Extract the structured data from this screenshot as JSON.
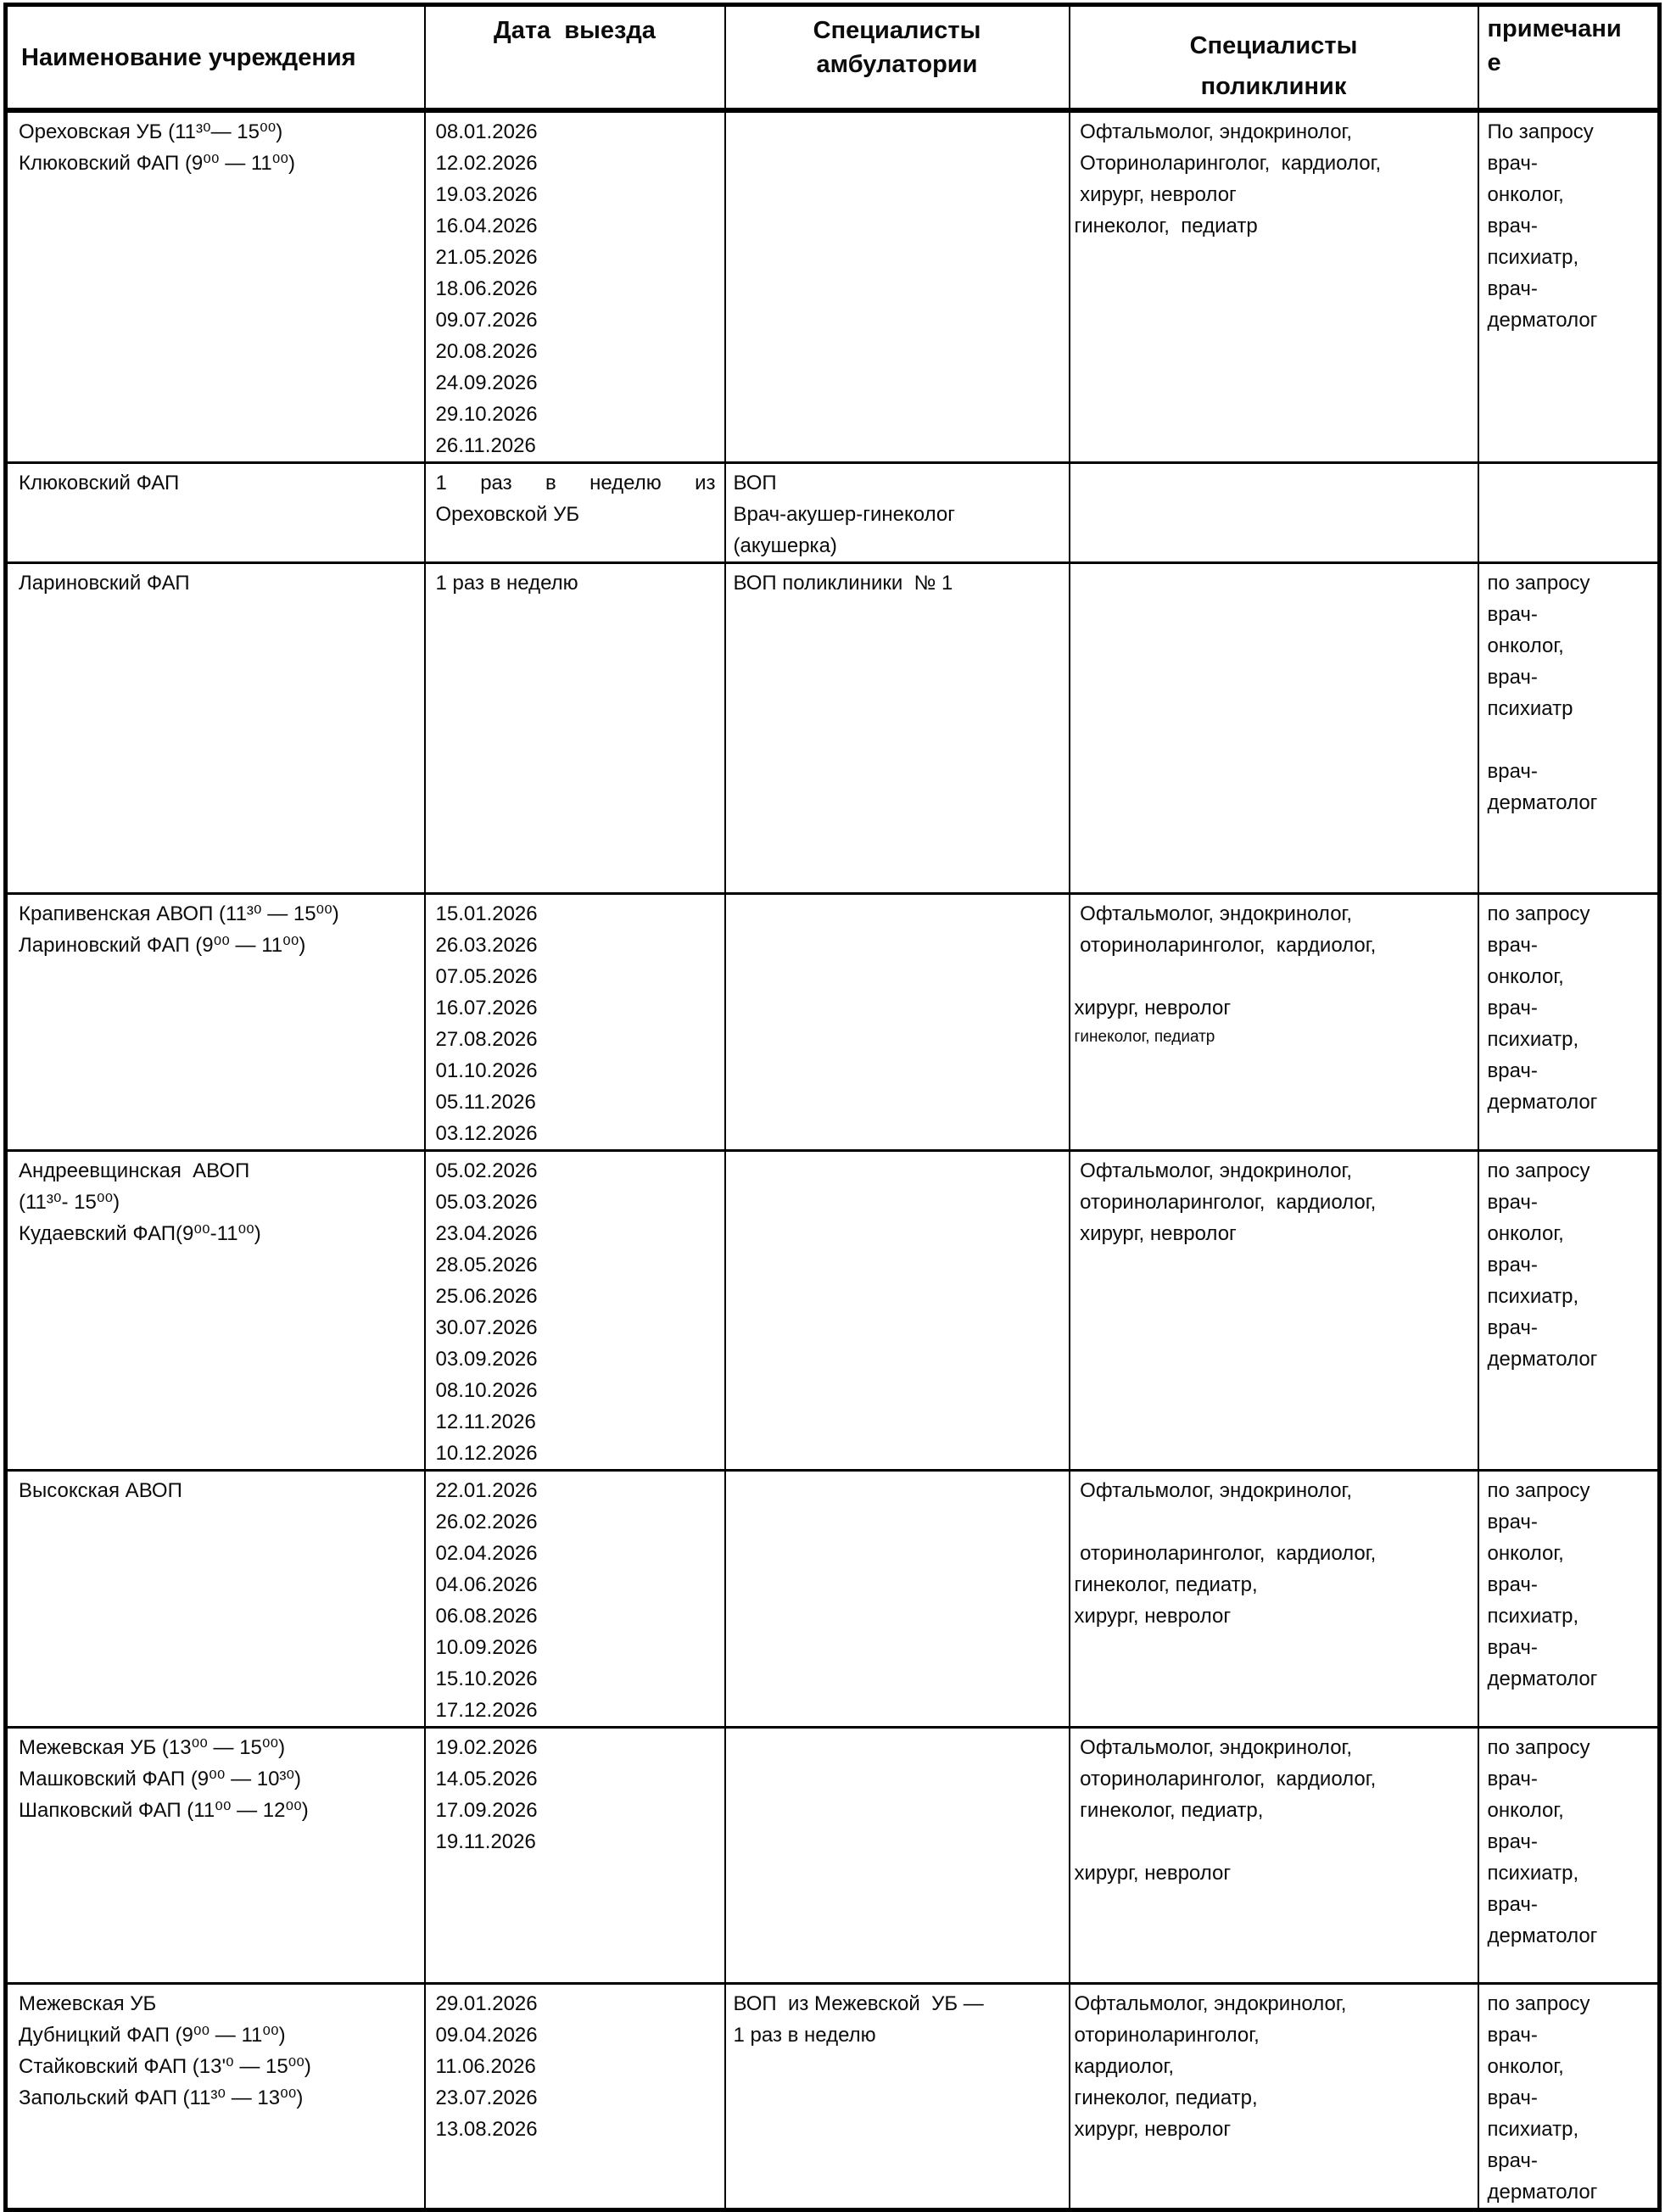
{
  "table": {
    "headers": [
      {
        "lines": [
          "Наименование учреждения"
        ]
      },
      {
        "lines": [
          "Дата  выезда"
        ]
      },
      {
        "lines": [
          "Специалисты",
          "амбулатории"
        ]
      },
      {
        "lines": [
          "Специалисты",
          "поликлиник"
        ]
      },
      {
        "lines": [
          "примечани",
          "е"
        ]
      }
    ],
    "rows": [
      {
        "cells": [
          {
            "lines": [
              "Ореховская УБ (11³⁰— 15⁰⁰)",
              "Клюковский ФАП (9⁰⁰ — 11⁰⁰)"
            ]
          },
          {
            "lines": [
              "08.01.2026",
              "12.02.2026",
              "19.03.2026",
              "16.04.2026",
              "21.05.2026",
              "18.06.2026",
              "09.07.2026",
              "20.08.2026",
              "24.09.2026",
              "29.10.2026",
              "26.11.2026"
            ]
          },
          {
            "lines": []
          },
          {
            "lines": [
              " Офтальмолог, эндокринолог,",
              " Оториноларинголог,  кардиолог,",
              " хирург, невролог",
              "гинеколог,  педиатр"
            ]
          },
          {
            "lines": [
              "По запросу",
              "врач-",
              "онколог,",
              "врач-",
              "психиатр,",
              "врач-",
              "дерматолог"
            ]
          }
        ]
      },
      {
        "cells": [
          {
            "lines": [
              "Клюковский ФАП"
            ]
          },
          {
            "justify": true,
            "lines": [
              "1 раз в неделю из Ореховской УБ"
            ]
          },
          {
            "lines": [
              "ВОП",
              "Врач-акушер-гинеколог",
              "(акушерка)"
            ]
          },
          {
            "lines": []
          },
          {
            "lines": []
          }
        ]
      },
      {
        "cells": [
          {
            "lines": [
              "Лариновский ФАП"
            ]
          },
          {
            "lines": [
              "1 раз в неделю"
            ]
          },
          {
            "lines": [
              "ВОП поликлиники  № 1"
            ]
          },
          {
            "lines": []
          },
          {
            "lines": [
              "по запросу",
              "врач-",
              "онколог,",
              "врач-",
              "психиатр",
              "",
              "врач-",
              "дерматолог"
            ]
          }
        ]
      },
      {
        "cells": [
          {
            "lines": [
              "Крапивенская АВОП (11³⁰ — 15⁰⁰)",
              "Лариновский ФАП (9⁰⁰ — 11⁰⁰)"
            ]
          },
          {
            "lines": [
              "15.01.2026",
              "26.03.2026",
              "07.05.2026",
              "16.07.2026",
              "27.08.2026",
              "01.10.2026",
              "05.11.2026",
              "03.12.2026"
            ]
          },
          {
            "lines": []
          },
          {
            "lines": [
              " Офтальмолог, эндокринолог,",
              " оториноларинголог,  кардиолог,",
              "",
              "хирург, невролог",
              {
                "text": "гинеколог, педиатр",
                "small": true
              }
            ]
          },
          {
            "lines": [
              "по запросу",
              "врач-",
              "онколог,",
              "врач-",
              "психиатр,",
              "врач-",
              "дерматолог"
            ]
          }
        ]
      },
      {
        "cells": [
          {
            "lines": [
              "Андреевщинская  АВОП",
              "(11³⁰- 15⁰⁰)",
              "Кудаевский ФАП(9⁰⁰-11⁰⁰)"
            ]
          },
          {
            "lines": [
              "05.02.2026",
              "05.03.2026",
              "23.04.2026",
              "28.05.2026",
              "25.06.2026",
              "30.07.2026",
              "03.09.2026",
              "08.10.2026",
              "12.11.2026",
              "10.12.2026"
            ]
          },
          {
            "lines": []
          },
          {
            "lines": [
              " Офтальмолог, эндокринолог,",
              " оториноларинголог,  кардиолог,",
              " хирург, невролог"
            ]
          },
          {
            "lines": [
              "по запросу",
              "врач-",
              "онколог,",
              "врач-",
              "психиатр,",
              "врач-",
              "дерматолог"
            ]
          }
        ]
      },
      {
        "cells": [
          {
            "lines": [
              "Высокская АВОП"
            ]
          },
          {
            "lines": [
              "22.01.2026",
              "26.02.2026",
              "02.04.2026",
              "04.06.2026",
              "06.08.2026",
              "10.09.2026",
              "15.10.2026",
              "17.12.2026"
            ]
          },
          {
            "lines": []
          },
          {
            "lines": [
              " Офтальмолог, эндокринолог,",
              "",
              " оториноларинголог,  кардиолог,",
              "гинеколог, педиатр,",
              "хирург, невролог"
            ]
          },
          {
            "lines": [
              "по запросу",
              "врач-",
              "онколог,",
              "врач-",
              "психиатр,",
              "врач-",
              "дерматолог"
            ]
          }
        ]
      },
      {
        "cells": [
          {
            "lines": [
              "Межевская УБ (13⁰⁰ — 15⁰⁰)",
              "Машковский ФАП (9⁰⁰ — 10³⁰)",
              "Шапковский ФАП (11⁰⁰ — 12⁰⁰)"
            ]
          },
          {
            "lines": [
              "19.02.2026",
              "14.05.2026",
              "17.09.2026",
              "19.11.2026"
            ]
          },
          {
            "lines": []
          },
          {
            "lines": [
              " Офтальмолог, эндокринолог,",
              " оториноларинголог,  кардиолог,",
              " гинеколог, педиатр,",
              "",
              "хирург, невролог"
            ]
          },
          {
            "lines": [
              "по запросу",
              "врач-",
              "онколог,",
              "врач-",
              "психиатр,",
              "врач-",
              "дерматолог"
            ]
          }
        ]
      },
      {
        "cells": [
          {
            "lines": [
              "Межевская УБ",
              "Дубницкий ФАП (9⁰⁰ — 11⁰⁰)",
              "Стайковский ФАП (13'⁰ — 15⁰⁰)",
              "Запольский ФАП (11³⁰ — 13⁰⁰)"
            ]
          },
          {
            "lines": [
              "29.01.2026",
              "09.04.2026",
              "11.06.2026",
              "23.07.2026",
              "13.08.2026"
            ]
          },
          {
            "lines": [
              "ВОП  из Межевской  УБ —",
              "1 раз в неделю"
            ]
          },
          {
            "lines": [
              "Офтальмолог, эндокринолог,",
              "оториноларинголог,",
              "кардиолог,",
              "гинеколог, педиатр,",
              "хирург, невролог"
            ]
          },
          {
            "lines": [
              "по запросу",
              "врач-",
              "онколог,",
              "врач-",
              "психиатр,",
              "врач-",
              "дерматолог"
            ]
          }
        ]
      }
    ]
  }
}
